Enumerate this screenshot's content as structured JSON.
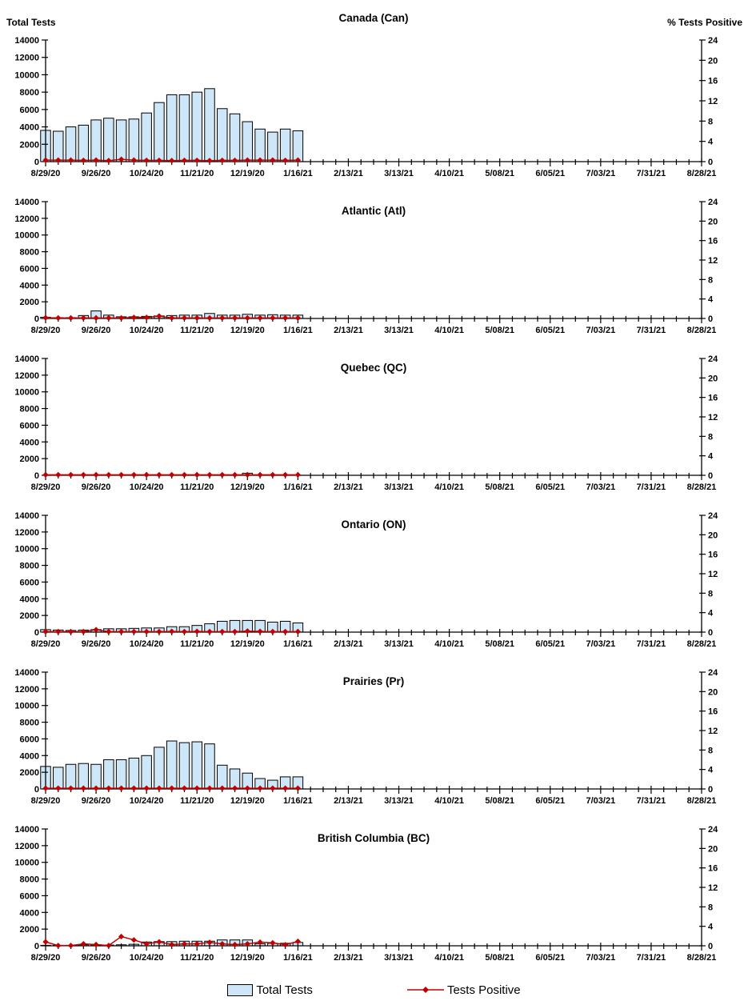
{
  "page": {
    "background": "#ffffff"
  },
  "colors": {
    "bar_fill": "#CDE6F8",
    "bar_stroke": "#000000",
    "line_color": "#C00000",
    "axis_color": "#000000",
    "text_color": "#000000"
  },
  "legend": {
    "bar_label": "Total Tests",
    "line_label": "Tests Positive"
  },
  "chart_data": {
    "type": "bar",
    "description": "Six stacked weekly panels of influenza-style lab test volume (bars, left axis) and percent positive (red diamond line, right axis)",
    "left_axis": {
      "title": "Total Tests",
      "min": 0,
      "max": 14000,
      "step": 2000,
      "tick_labels": [
        "14000",
        "12000",
        "10000",
        "8000",
        "6000",
        "4000",
        "2000",
        "0"
      ]
    },
    "right_axis": {
      "title": "% Tests Positive",
      "min": 0,
      "max": 24,
      "step": 4,
      "tick_labels": [
        "24",
        "20",
        "16",
        "12",
        "8",
        "4",
        "0"
      ]
    },
    "x_axis": {
      "weeks_total": 53,
      "label_every_n_weeks": 4,
      "tick_labels": [
        "8/29/20",
        "9/26/20",
        "10/24/20",
        "11/21/20",
        "12/19/20",
        "1/16/21",
        "2/13/21",
        "3/13/21",
        "4/10/21",
        "5/08/21",
        "6/05/21",
        "7/03/21",
        "7/31/21",
        "8/28/21"
      ]
    },
    "data_week_dates": [
      "8/29/20",
      "9/5/20",
      "9/12/20",
      "9/19/20",
      "9/26/20",
      "10/3/20",
      "10/10/20",
      "10/17/20",
      "10/24/20",
      "10/31/20",
      "11/7/20",
      "11/14/20",
      "11/21/20",
      "11/28/20",
      "12/5/20",
      "12/12/20",
      "12/19/20",
      "12/26/20",
      "1/2/21",
      "1/9/21",
      "1/16/21"
    ],
    "panels": [
      {
        "id": "canada",
        "title": "Canada (Can)",
        "total_tests": [
          3600,
          3500,
          4000,
          4200,
          4800,
          5000,
          4800,
          4900,
          5600,
          6800,
          7700,
          7700,
          8000,
          8400,
          6100,
          5500,
          4600,
          3750,
          3400,
          3750,
          3550
        ],
        "pct_positive": [
          0.3,
          0.3,
          0.3,
          0.25,
          0.3,
          0.2,
          0.45,
          0.3,
          0.25,
          0.25,
          0.2,
          0.25,
          0.25,
          0.2,
          0.25,
          0.25,
          0.3,
          0.3,
          0.3,
          0.25,
          0.3
        ]
      },
      {
        "id": "atlantic",
        "title": "Atlantic (Atl)",
        "total_tests": [
          150,
          100,
          100,
          350,
          900,
          400,
          200,
          200,
          250,
          300,
          350,
          400,
          400,
          600,
          400,
          400,
          500,
          400,
          450,
          400,
          400
        ],
        "pct_positive": [
          0.15,
          0.1,
          0.1,
          0.1,
          0.1,
          0.1,
          0.1,
          0.2,
          0.2,
          0.5,
          0.1,
          0.1,
          0.1,
          0.1,
          0.1,
          0.1,
          0.1,
          0.1,
          0.1,
          0.1,
          0.1
        ]
      },
      {
        "id": "quebec",
        "title": "Quebec (QC)",
        "total_tests": [
          0,
          0,
          0,
          0,
          0,
          0,
          0,
          0,
          0,
          0,
          0,
          0,
          0,
          0,
          0,
          0,
          250,
          0,
          0,
          0,
          0
        ],
        "pct_positive": [
          0.1,
          0.1,
          0.1,
          0.1,
          0.1,
          0.1,
          0.1,
          0.1,
          0.1,
          0.1,
          0.1,
          0.1,
          0.1,
          0.1,
          0.1,
          0.1,
          0.1,
          0.1,
          0.1,
          0.1,
          0.1
        ]
      },
      {
        "id": "ontario",
        "title": "Ontario (ON)",
        "total_tests": [
          300,
          250,
          200,
          250,
          300,
          400,
          400,
          450,
          500,
          500,
          650,
          650,
          800,
          1000,
          1300,
          1400,
          1400,
          1400,
          1200,
          1300,
          1100
        ],
        "pct_positive": [
          0.1,
          0.1,
          0.1,
          0.1,
          0.5,
          0.1,
          0.1,
          0.1,
          0.1,
          0.1,
          0.15,
          0.1,
          0.15,
          0.1,
          0.1,
          0.1,
          0.2,
          0.15,
          0.1,
          0.1,
          0.1
        ]
      },
      {
        "id": "prairies",
        "title": "Prairies (Pr)",
        "total_tests": [
          2700,
          2600,
          2950,
          3050,
          2950,
          3500,
          3500,
          3700,
          4000,
          5000,
          5750,
          5550,
          5650,
          5400,
          2850,
          2400,
          1900,
          1250,
          1050,
          1450,
          1450
        ],
        "pct_positive": [
          0.15,
          0.15,
          0.15,
          0.15,
          0.15,
          0.15,
          0.15,
          0.15,
          0.15,
          0.15,
          0.15,
          0.15,
          0.15,
          0.15,
          0.15,
          0.15,
          0.15,
          0.15,
          0.15,
          0.15,
          0.15
        ]
      },
      {
        "id": "british-columbia",
        "title": "British Columbia (BC)",
        "total_tests": [
          60,
          60,
          60,
          120,
          120,
          90,
          120,
          180,
          450,
          500,
          500,
          550,
          550,
          550,
          700,
          700,
          700,
          250,
          300,
          300,
          400
        ],
        "pct_positive": [
          0.8,
          0.05,
          0.05,
          0.4,
          0.25,
          0.05,
          1.9,
          1.2,
          0.4,
          0.8,
          0.25,
          0.4,
          0.4,
          0.7,
          0.4,
          0.25,
          0.4,
          0.75,
          0.6,
          0.2,
          0.9
        ]
      }
    ]
  }
}
